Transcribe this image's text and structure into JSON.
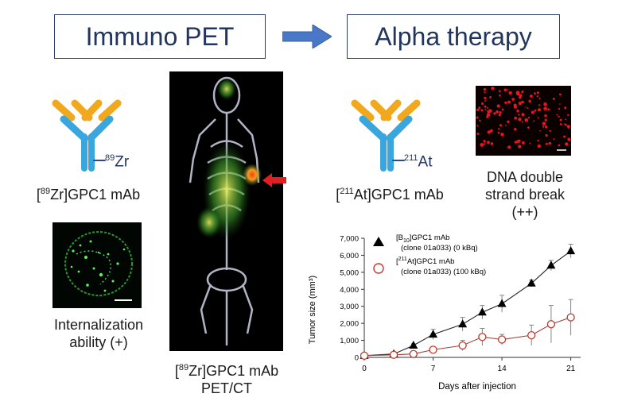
{
  "header": {
    "left_title": "Immuno PET",
    "right_title": "Alpha therapy"
  },
  "left": {
    "isotope_sup": "89",
    "isotope_el": "Zr",
    "antibody_sup": "89",
    "antibody_rest": "Zr]GPC1 mAb",
    "internalization_line1": "Internalization",
    "internalization_line2": "ability (+)"
  },
  "center": {
    "caption_sup": "89",
    "caption_rest": "Zr]GPC1 mAb",
    "caption_line2": "PET/CT"
  },
  "right": {
    "isotope_sup": "211",
    "isotope_el": "At",
    "antibody_sup": "211",
    "antibody_rest": "At]GPC1 mAb",
    "dna_line1": "DNA double",
    "dna_line2": "strand break",
    "dna_line3": "(++)"
  },
  "colors": {
    "antibody_blue": "#3aa6de",
    "antibody_orange": "#f2a81d",
    "arrow_blue": "#4a78c8",
    "title_text": "#22355e",
    "control_series": "#000000",
    "treated_series": "#c0392b"
  },
  "chart_data": {
    "type": "line",
    "ylabel": "Tumor size (mm³)",
    "xlabel": "Days after injection",
    "xlim": [
      0,
      22
    ],
    "ylim": [
      0,
      7000
    ],
    "x_ticks": [
      0,
      7,
      14,
      21
    ],
    "y_ticks": [
      0,
      1000,
      2000,
      3000,
      4000,
      5000,
      6000,
      7000
    ],
    "y_tick_labels": [
      "0",
      "1,000",
      "2,000",
      "3,000",
      "4,000",
      "5,000",
      "6,000",
      "7,000"
    ],
    "legend_position": "top-left",
    "series": [
      {
        "name": "[B10]GPC1 mAb (clone 01a033) (0 kBq)",
        "legend_line1_pre": "[B",
        "legend_line1_sub": "10",
        "legend_line1_post": "]GPC1 mAb",
        "legend_line2": "(clone 01a033) (0 kBq)",
        "marker": "triangle",
        "x": [
          0,
          3,
          5,
          7,
          10,
          12,
          14,
          17,
          19,
          21
        ],
        "y": [
          100,
          200,
          700,
          1350,
          1950,
          2650,
          3150,
          4350,
          5400,
          6250
        ],
        "err": [
          50,
          80,
          100,
          300,
          400,
          400,
          500,
          200,
          300,
          400
        ]
      },
      {
        "name": "[211At]GPC1 mAb (clone 01a033) (100 kBq)",
        "legend_line1_pre": "[",
        "legend_line1_sup": "211",
        "legend_line1_post": "At]GPC1 mAb",
        "legend_line2": "(clone 01a033) (100 kBq)",
        "marker": "circle-open",
        "x": [
          0,
          3,
          5,
          7,
          10,
          12,
          14,
          17,
          19,
          21
        ],
        "y": [
          100,
          150,
          200,
          450,
          700,
          1200,
          1050,
          1300,
          1950,
          2350
        ],
        "err": [
          50,
          50,
          80,
          150,
          300,
          500,
          300,
          600,
          1100,
          1050
        ]
      }
    ]
  }
}
